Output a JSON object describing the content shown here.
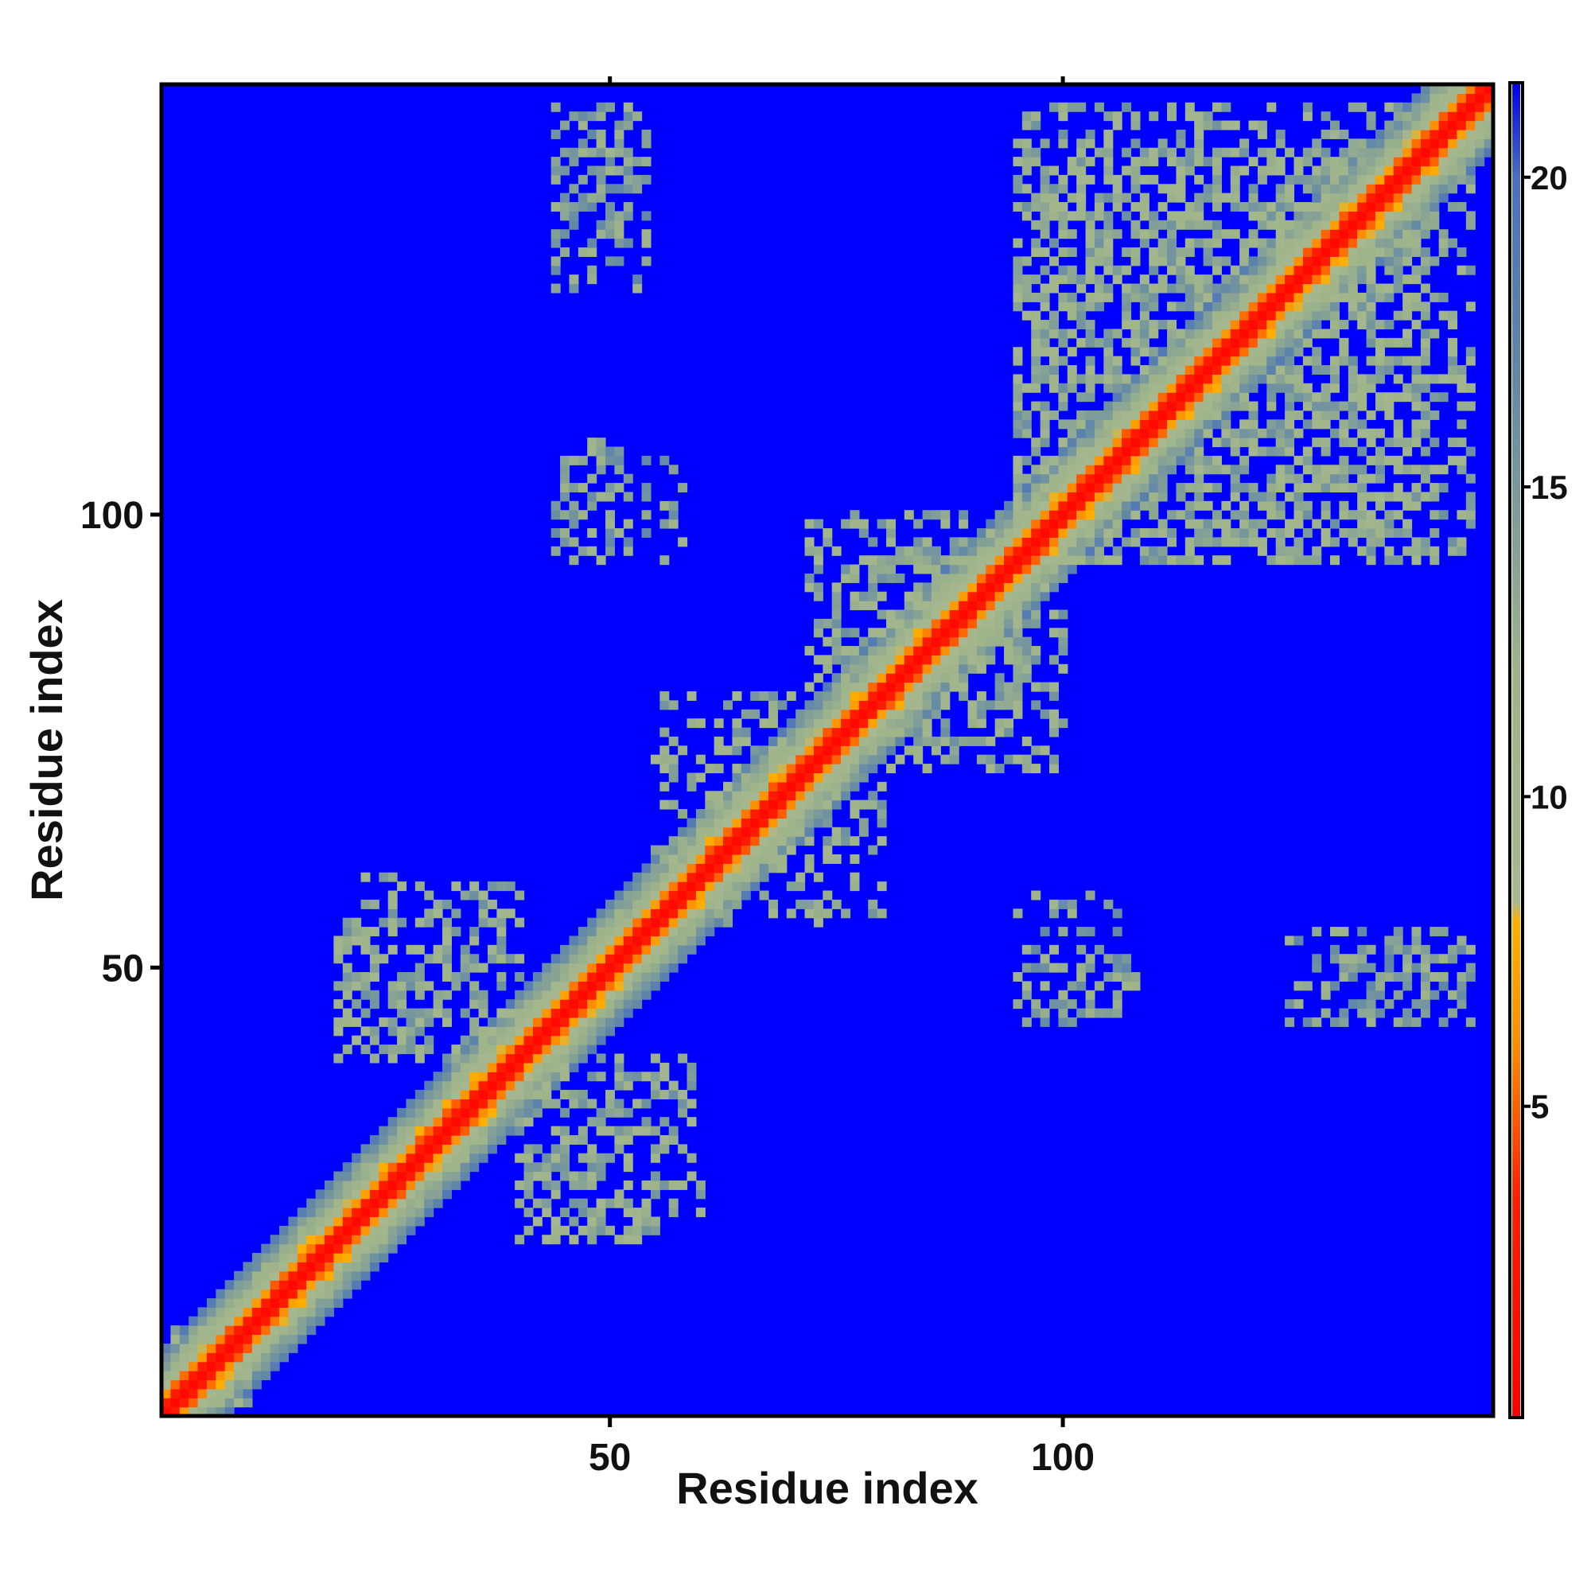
{
  "chart_data": {
    "type": "heatmap",
    "title": "",
    "xlabel": "Residue index",
    "ylabel": "Residue index",
    "n_residues": 147,
    "xlim": [
      1,
      147
    ],
    "ylim": [
      1,
      147
    ],
    "x_ticks": [
      50,
      100
    ],
    "y_ticks": [
      50,
      100
    ],
    "x_tick_labels": [
      "50",
      "100"
    ],
    "y_tick_labels": [
      "50",
      "100"
    ],
    "colorbar": {
      "range": [
        0,
        21.5
      ],
      "ticks": [
        5,
        10,
        15,
        20
      ],
      "tick_labels": [
        "5",
        "10",
        "15",
        "20"
      ],
      "stops": [
        {
          "value": 0,
          "color": "#ff0000"
        },
        {
          "value": 3.5,
          "color": "#ff2000"
        },
        {
          "value": 6,
          "color": "#ff8c00"
        },
        {
          "value": 8,
          "color": "#ffb000"
        },
        {
          "value": 8.3,
          "color": "#a8b890"
        },
        {
          "value": 12,
          "color": "#9fb48a"
        },
        {
          "value": 17,
          "color": "#5f86a8"
        },
        {
          "value": 20,
          "color": "#4a70c0"
        },
        {
          "value": 21.5,
          "color": "#0000ee"
        }
      ]
    },
    "background_value": 21.5,
    "background_color": "#0000ff",
    "diagonal_profile": [
      {
        "offset": 0,
        "value": 1
      },
      {
        "offset": 1,
        "value": 3
      },
      {
        "offset": 2,
        "value": 6
      },
      {
        "offset": 3,
        "value": 9
      },
      {
        "offset": 4,
        "value": 11.5
      },
      {
        "offset": 5,
        "value": 13
      },
      {
        "offset": 6,
        "value": 15
      },
      {
        "offset": 7,
        "value": 17.5
      }
    ],
    "contact_regions": [
      {
        "i_range": [
          2,
          10
        ],
        "j_range": [
          2,
          10
        ],
        "value": 13
      },
      {
        "i_range": [
          20,
          40
        ],
        "j_range": [
          40,
          60
        ],
        "value": 13
      },
      {
        "i_range": [
          40,
          55
        ],
        "j_range": [
          20,
          38
        ],
        "value": 13
      },
      {
        "i_range": [
          55,
          72
        ],
        "j_range": [
          60,
          80
        ],
        "value": 13
      },
      {
        "i_range": [
          72,
          95
        ],
        "j_range": [
          75,
          100
        ],
        "value": 13
      },
      {
        "i_range": [
          95,
          145
        ],
        "j_range": [
          95,
          140
        ],
        "value": 13
      },
      {
        "i_range": [
          44,
          58
        ],
        "j_range": [
          95,
          106
        ],
        "value": 14
      },
      {
        "i_range": [
          44,
          54
        ],
        "j_range": [
          125,
          145
        ],
        "value": 14
      },
      {
        "i_range": [
          95,
          108
        ],
        "j_range": [
          45,
          52
        ],
        "value": 14
      },
      {
        "i_range": [
          128,
          145
        ],
        "j_range": [
          45,
          52
        ],
        "value": 14
      }
    ]
  }
}
